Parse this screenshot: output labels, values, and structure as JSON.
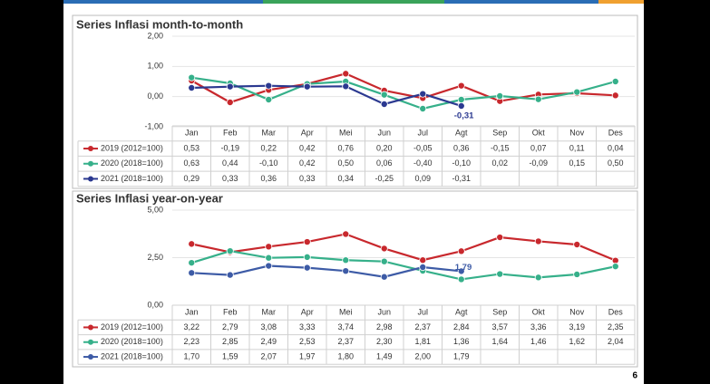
{
  "chart_data": [
    {
      "type": "line",
      "title": "Series Inflasi month-to-month",
      "categories": [
        "Jan",
        "Feb",
        "Mar",
        "Apr",
        "Mei",
        "Jun",
        "Jul",
        "Agt",
        "Sep",
        "Okt",
        "Nov",
        "Des"
      ],
      "ylim": [
        -1,
        2
      ],
      "yticks": [
        {
          "value": -1,
          "label": "-1,00"
        },
        {
          "value": 0,
          "label": "0,00"
        },
        {
          "value": 1,
          "label": "1,00"
        },
        {
          "value": 2,
          "label": "2,00"
        }
      ],
      "grid": true,
      "series": [
        {
          "name": "2019 (2012=100)",
          "color": "#c8282d",
          "values": [
            0.53,
            -0.19,
            0.22,
            0.42,
            0.76,
            0.2,
            -0.05,
            0.36,
            -0.15,
            0.07,
            0.11,
            0.04
          ],
          "value_labels": [
            "0,53",
            "-0,19",
            "0,22",
            "0,42",
            "0,76",
            "0,20",
            "-0,05",
            "0,36",
            "-0,15",
            "0,07",
            "0,11",
            "0,04"
          ]
        },
        {
          "name": "2020 (2018=100)",
          "color": "#36b08a",
          "values": [
            0.63,
            0.44,
            -0.1,
            0.42,
            0.5,
            0.06,
            -0.4,
            -0.1,
            0.02,
            -0.09,
            0.15,
            0.5
          ],
          "value_labels": [
            "0,63",
            "0,44",
            "-0,10",
            "0,42",
            "0,50",
            "0,06",
            "-0,40",
            "-0,10",
            "0,02",
            "-0,09",
            "0,15",
            "0,50"
          ]
        },
        {
          "name": "2021 (2018=100)",
          "color": "#2b3990",
          "values": [
            0.29,
            0.33,
            0.36,
            0.33,
            0.34,
            -0.25,
            0.09,
            -0.31,
            null,
            null,
            null,
            null
          ],
          "value_labels": [
            "0,29",
            "0,33",
            "0,36",
            "0,33",
            "0,34",
            "-0,25",
            "0,09",
            "-0,31",
            null,
            null,
            null,
            null
          ]
        }
      ]
    },
    {
      "type": "line",
      "title": "Series Inflasi year-on-year",
      "categories": [
        "Jan",
        "Feb",
        "Mar",
        "Apr",
        "Mei",
        "Jun",
        "Jul",
        "Agt",
        "Sep",
        "Okt",
        "Nov",
        "Des"
      ],
      "ylim": [
        0,
        5
      ],
      "yticks": [
        {
          "value": 0,
          "label": "0,00"
        },
        {
          "value": 2.5,
          "label": "2,50"
        },
        {
          "value": 5,
          "label": "5,00"
        }
      ],
      "grid": true,
      "series": [
        {
          "name": "2019 (2012=100)",
          "color": "#c8282d",
          "values": [
            3.22,
            2.79,
            3.08,
            3.33,
            3.74,
            2.98,
            2.37,
            2.84,
            3.57,
            3.36,
            3.19,
            2.35
          ],
          "value_labels": [
            "3,22",
            "2,79",
            "3,08",
            "3,33",
            "3,74",
            "2,98",
            "2,37",
            "2,84",
            "3,57",
            "3,36",
            "3,19",
            "2,35"
          ]
        },
        {
          "name": "2020 (2018=100)",
          "color": "#36b08a",
          "values": [
            2.23,
            2.85,
            2.49,
            2.53,
            2.37,
            2.3,
            1.81,
            1.36,
            1.64,
            1.46,
            1.62,
            2.04
          ],
          "value_labels": [
            "2,23",
            "2,85",
            "2,49",
            "2,53",
            "2,37",
            "2,30",
            "1,81",
            "1,36",
            "1,64",
            "1,46",
            "1,62",
            "2,04"
          ]
        },
        {
          "name": "2021 (2018=100)",
          "color": "#3d5ba6",
          "values": [
            1.7,
            1.59,
            2.07,
            1.97,
            1.8,
            1.49,
            2.0,
            1.79,
            null,
            null,
            null,
            null
          ],
          "value_labels": [
            "1,70",
            "1,59",
            "2,07",
            "1,97",
            "1,80",
            "1,49",
            "2,00",
            "1,79",
            null,
            null,
            null,
            null
          ]
        }
      ]
    }
  ],
  "page_number": "6"
}
